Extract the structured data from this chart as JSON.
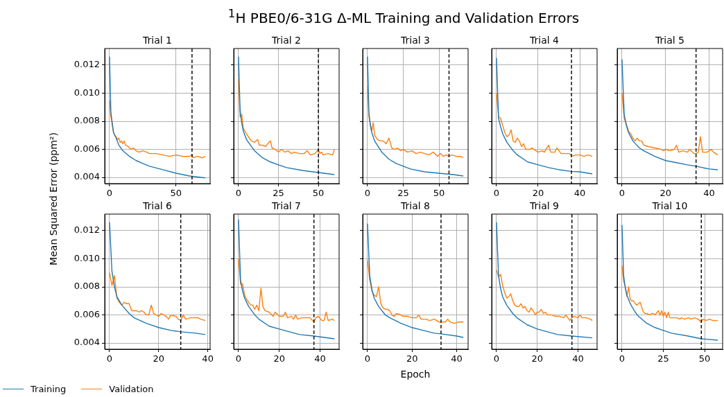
{
  "chart_data": [
    {
      "type": "other",
      "title": "$^{1}$H PBE0/6-31G Δ-ML Training and Validation Errors"
    },
    {
      "type": "line",
      "title": "Trial 1",
      "ylabel": "Mean Squared Error (ppm²)",
      "xlim": [
        -3.6,
        75.6
      ],
      "xticks": [
        0,
        50
      ],
      "ylim": [
        0.00356,
        0.01318
      ],
      "yticks": [
        {
          "value": 0.004,
          "label": "0.004"
        },
        {
          "value": 0.006,
          "label": "0.006"
        },
        {
          "value": 0.008,
          "label": "0.008"
        },
        {
          "value": 0.01,
          "label": "0.010"
        },
        {
          "value": 0.012,
          "label": "0.012"
        }
      ],
      "grid": true,
      "ref_lines": [
        {
          "axis": "x",
          "value": 62,
          "color": "#000000",
          "line_style": "dashed"
        }
      ],
      "series": [
        {
          "color": "#1f77b4",
          "x": [
            0,
            1,
            2,
            3,
            5,
            7,
            10,
            15,
            20,
            25,
            30,
            40,
            50,
            60,
            72
          ],
          "values": [
            0.0126,
            0.0087,
            0.0078,
            0.0072,
            0.0068,
            0.0063,
            0.0059,
            0.0055,
            0.0052,
            0.005,
            0.0048,
            0.00455,
            0.0043,
            0.0041,
            0.00397
          ]
        },
        {
          "color": "#ff7f0e",
          "x": [
            0,
            1,
            2,
            3,
            4,
            5,
            6,
            7,
            8,
            9,
            10,
            11,
            12,
            14,
            16,
            18,
            20,
            22,
            25,
            28,
            30,
            35,
            40,
            45,
            50,
            55,
            60,
            62,
            63,
            66,
            70,
            72
          ],
          "values": [
            0.0095,
            0.0083,
            0.008,
            0.0072,
            0.007,
            0.0069,
            0.0067,
            0.0068,
            0.0065,
            0.0066,
            0.0064,
            0.0066,
            0.0063,
            0.0062,
            0.006,
            0.0061,
            0.0059,
            0.0058,
            0.0059,
            0.0058,
            0.0057,
            0.0057,
            0.0056,
            0.0055,
            0.0056,
            0.0055,
            0.0055,
            0.0056,
            0.0054,
            0.0055,
            0.0054,
            0.0055
          ]
        }
      ]
    },
    {
      "type": "line",
      "title": "Trial 2",
      "xlim": [
        -3,
        63
      ],
      "xticks": [
        0,
        25,
        50
      ],
      "ylim": [
        0.00356,
        0.01318
      ],
      "yticks": [
        0.004,
        0.006,
        0.008,
        0.01,
        0.012
      ],
      "grid": true,
      "tick_labels": "x",
      "ref_lines": [
        {
          "axis": "x",
          "value": 50,
          "color": "#000000",
          "line_style": "dashed"
        }
      ],
      "series": [
        {
          "color": "#1f77b4",
          "x": [
            0,
            1,
            2,
            3,
            5,
            10,
            15,
            20,
            25,
            30,
            40,
            50,
            60
          ],
          "values": [
            0.0126,
            0.0088,
            0.0079,
            0.0073,
            0.0067,
            0.0059,
            0.0054,
            0.0051,
            0.0049,
            0.0047,
            0.0045,
            0.00435,
            0.0042
          ]
        },
        {
          "color": "#ff7f0e",
          "x": [
            0,
            1,
            2,
            3,
            5,
            8,
            10,
            12,
            13,
            15,
            17,
            19,
            20,
            21,
            23,
            25,
            27,
            29,
            31,
            33,
            35,
            38,
            41,
            43,
            45,
            48,
            50,
            51,
            52,
            53,
            56,
            59,
            60
          ],
          "values": [
            0.011,
            0.0083,
            0.0085,
            0.0075,
            0.0071,
            0.0066,
            0.0065,
            0.0067,
            0.0063,
            0.0063,
            0.0062,
            0.0065,
            0.0066,
            0.0061,
            0.006,
            0.0058,
            0.006,
            0.0058,
            0.0059,
            0.0057,
            0.0058,
            0.0057,
            0.0057,
            0.0059,
            0.0056,
            0.0057,
            0.006,
            0.0057,
            0.0058,
            0.0056,
            0.0057,
            0.0056,
            0.006
          ]
        }
      ]
    },
    {
      "type": "line",
      "title": "Trial 3",
      "xlim": [
        -3.35,
        70.35
      ],
      "xticks": [
        0,
        25,
        50
      ],
      "ylim": [
        0.00356,
        0.01318
      ],
      "yticks": [
        0.004,
        0.006,
        0.008,
        0.01,
        0.012
      ],
      "grid": true,
      "tick_labels": "x",
      "ref_lines": [
        {
          "axis": "x",
          "value": 57,
          "color": "#000000",
          "line_style": "dashed"
        }
      ],
      "series": [
        {
          "color": "#1f77b4",
          "x": [
            0,
            1,
            2,
            3,
            5,
            10,
            15,
            20,
            25,
            30,
            40,
            50,
            60,
            67
          ],
          "values": [
            0.0126,
            0.0086,
            0.0077,
            0.0072,
            0.0066,
            0.0058,
            0.0053,
            0.005,
            0.0048,
            0.0046,
            0.0044,
            0.0043,
            0.0042,
            0.0041
          ]
        },
        {
          "color": "#ff7f0e",
          "x": [
            0,
            1,
            2,
            3,
            4,
            5,
            7,
            9,
            11,
            13,
            15,
            17,
            19,
            21,
            23,
            25,
            28,
            31,
            34,
            37,
            40,
            43,
            46,
            49,
            51,
            53,
            55,
            57,
            59,
            62,
            65,
            67
          ],
          "values": [
            0.0105,
            0.0083,
            0.0078,
            0.0073,
            0.0079,
            0.007,
            0.0067,
            0.0066,
            0.0066,
            0.0064,
            0.0068,
            0.0061,
            0.006,
            0.0061,
            0.0059,
            0.006,
            0.0058,
            0.0059,
            0.0057,
            0.0058,
            0.0057,
            0.0056,
            0.0058,
            0.0055,
            0.0057,
            0.0055,
            0.0056,
            0.0055,
            0.0056,
            0.0055,
            0.0055,
            0.0054
          ]
        }
      ]
    },
    {
      "type": "line",
      "title": "Trial 4",
      "xlim": [
        -2.3,
        48.3
      ],
      "xticks": [
        0,
        20,
        40
      ],
      "ylim": [
        0.00356,
        0.01318
      ],
      "yticks": [
        0.004,
        0.006,
        0.008,
        0.01,
        0.012
      ],
      "grid": true,
      "tick_labels": "x",
      "ref_lines": [
        {
          "axis": "x",
          "value": 36,
          "color": "#000000",
          "line_style": "dashed"
        }
      ],
      "series": [
        {
          "color": "#1f77b4",
          "x": [
            0,
            1,
            2,
            3,
            5,
            8,
            10,
            15,
            20,
            25,
            30,
            36,
            40,
            46
          ],
          "values": [
            0.0125,
            0.0082,
            0.0076,
            0.0071,
            0.0065,
            0.0059,
            0.0056,
            0.0051,
            0.0049,
            0.0047,
            0.00455,
            0.00443,
            0.0044,
            0.00425
          ]
        },
        {
          "color": "#ff7f0e",
          "x": [
            0,
            1,
            2,
            3,
            4,
            5,
            6,
            7,
            8,
            9,
            10,
            11,
            12,
            13,
            14,
            16,
            17,
            19,
            20,
            22,
            23,
            25,
            26,
            28,
            29,
            31,
            33,
            35,
            36,
            38,
            40,
            42,
            44,
            46
          ],
          "values": [
            0.01,
            0.0083,
            0.0082,
            0.0077,
            0.0072,
            0.0069,
            0.007,
            0.0074,
            0.0066,
            0.0065,
            0.0068,
            0.0066,
            0.0062,
            0.0064,
            0.006,
            0.006,
            0.0061,
            0.0059,
            0.0058,
            0.0059,
            0.0058,
            0.0063,
            0.0058,
            0.0058,
            0.0061,
            0.0057,
            0.0057,
            0.0057,
            0.0055,
            0.0056,
            0.0056,
            0.0055,
            0.0056,
            0.0055
          ]
        }
      ]
    },
    {
      "type": "line",
      "title": "Trial 5",
      "xlim": [
        -2.2,
        46.2
      ],
      "xticks": [
        0,
        20,
        40
      ],
      "ylim": [
        0.00356,
        0.01318
      ],
      "yticks": [
        0.004,
        0.006,
        0.008,
        0.01,
        0.012
      ],
      "grid": true,
      "tick_labels": "x",
      "ref_lines": [
        {
          "axis": "x",
          "value": 34,
          "color": "#000000",
          "line_style": "dashed"
        }
      ],
      "series": [
        {
          "color": "#1f77b4",
          "x": [
            0,
            1,
            2,
            3,
            5,
            8,
            10,
            15,
            20,
            25,
            30,
            34,
            40,
            44
          ],
          "values": [
            0.0124,
            0.0085,
            0.0077,
            0.0072,
            0.0066,
            0.0061,
            0.0059,
            0.0055,
            0.0052,
            0.00505,
            0.0049,
            0.0048,
            0.0046,
            0.00455
          ]
        },
        {
          "color": "#ff7f0e",
          "x": [
            0,
            1,
            2,
            3,
            4,
            5,
            6,
            7,
            8,
            9,
            10,
            12,
            15,
            18,
            19,
            20,
            22,
            24,
            25,
            26,
            28,
            30,
            31,
            33,
            34,
            35,
            36,
            37,
            39,
            41,
            42,
            44
          ],
          "values": [
            0.01,
            0.0082,
            0.0078,
            0.0073,
            0.0071,
            0.0068,
            0.0066,
            0.0068,
            0.0066,
            0.0066,
            0.0063,
            0.0062,
            0.0061,
            0.006,
            0.0059,
            0.006,
            0.0059,
            0.006,
            0.0063,
            0.0058,
            0.0059,
            0.0058,
            0.006,
            0.0057,
            0.0057,
            0.0058,
            0.0069,
            0.0058,
            0.0058,
            0.006,
            0.0058,
            0.0056
          ]
        }
      ]
    },
    {
      "type": "line",
      "title": "Trial 6",
      "legend": "bottom left",
      "xlim": [
        -1.95,
        40.95
      ],
      "xticks": [
        0,
        20,
        40
      ],
      "ylim": [
        0.00356,
        0.01318
      ],
      "yticks": [
        {
          "value": 0.004,
          "label": "0.004"
        },
        {
          "value": 0.006,
          "label": "0.006"
        },
        {
          "value": 0.008,
          "label": "0.008"
        },
        {
          "value": 0.01,
          "label": "0.010"
        },
        {
          "value": 0.012,
          "label": "0.012"
        }
      ],
      "grid": true,
      "ref_lines": [
        {
          "axis": "x",
          "value": 29,
          "color": "#000000",
          "line_style": "dashed"
        }
      ],
      "series": [
        {
          "name": "Training",
          "color": "#1f77b4",
          "x": [
            0,
            1,
            2,
            3,
            5,
            8,
            10,
            15,
            20,
            25,
            29,
            35,
            39
          ],
          "values": [
            0.0126,
            0.0091,
            0.008,
            0.0073,
            0.0067,
            0.0061,
            0.0058,
            0.0054,
            0.0051,
            0.0049,
            0.0048,
            0.0047,
            0.0046
          ]
        },
        {
          "name": "Validation",
          "color": "#ff7f0e",
          "x": [
            0,
            1,
            2,
            3,
            4,
            5,
            6,
            7,
            8,
            9,
            11,
            12,
            13,
            14,
            15,
            16,
            17,
            18,
            20,
            21,
            23,
            24,
            25,
            27,
            28,
            29,
            30,
            31,
            33,
            34,
            36,
            37,
            39
          ],
          "values": [
            0.009,
            0.0081,
            0.0088,
            0.0072,
            0.0069,
            0.0067,
            0.0069,
            0.0068,
            0.0068,
            0.0063,
            0.0063,
            0.0062,
            0.0063,
            0.0062,
            0.006,
            0.006,
            0.0067,
            0.0061,
            0.0059,
            0.0061,
            0.0059,
            0.0057,
            0.006,
            0.0059,
            0.0057,
            0.0056,
            0.006,
            0.0057,
            0.0058,
            0.0058,
            0.0058,
            0.0057,
            0.0056
          ]
        }
      ]
    },
    {
      "type": "line",
      "title": "Trial 7",
      "xlim": [
        -2.35,
        49.35
      ],
      "xticks": [
        0,
        20,
        40
      ],
      "ylim": [
        0.00356,
        0.01318
      ],
      "yticks": [
        0.004,
        0.006,
        0.008,
        0.01,
        0.012
      ],
      "grid": true,
      "tick_labels": "x",
      "ref_lines": [
        {
          "axis": "x",
          "value": 37,
          "color": "#000000",
          "line_style": "dashed"
        }
      ],
      "series": [
        {
          "color": "#1f77b4",
          "x": [
            0,
            1,
            2,
            3,
            5,
            8,
            10,
            15,
            20,
            25,
            30,
            37,
            47
          ],
          "values": [
            0.0128,
            0.0085,
            0.0077,
            0.0072,
            0.0066,
            0.006,
            0.0057,
            0.0052,
            0.005,
            0.0048,
            0.0046,
            0.0045,
            0.0043
          ]
        },
        {
          "color": "#ff7f0e",
          "x": [
            0,
            1,
            2,
            3,
            4,
            5,
            6,
            7,
            8,
            9,
            10,
            11,
            12,
            13,
            15,
            17,
            18,
            20,
            22,
            23,
            24,
            26,
            27,
            28,
            29,
            31,
            33,
            35,
            37,
            38,
            39,
            41,
            42,
            43,
            44,
            46,
            47
          ],
          "values": [
            0.01,
            0.0082,
            0.0082,
            0.0074,
            0.0071,
            0.0069,
            0.0067,
            0.0067,
            0.0064,
            0.0067,
            0.0063,
            0.0079,
            0.0066,
            0.0063,
            0.0062,
            0.0059,
            0.0062,
            0.0059,
            0.0059,
            0.0062,
            0.0058,
            0.0059,
            0.0057,
            0.006,
            0.0057,
            0.0058,
            0.0058,
            0.0058,
            0.0055,
            0.0058,
            0.0059,
            0.0056,
            0.0056,
            0.0062,
            0.0056,
            0.0057,
            0.0056
          ]
        }
      ]
    },
    {
      "type": "line",
      "title": "Trial 8",
      "xlabel": "Epoch",
      "xlim": [
        -2.15,
        45.15
      ],
      "xticks": [
        0,
        20,
        40
      ],
      "ylim": [
        0.00356,
        0.01318
      ],
      "yticks": [
        0.004,
        0.006,
        0.008,
        0.01,
        0.012
      ],
      "grid": true,
      "tick_labels": "x",
      "ref_lines": [
        {
          "axis": "x",
          "value": 33,
          "color": "#000000",
          "line_style": "dashed"
        }
      ],
      "series": [
        {
          "color": "#1f77b4",
          "x": [
            0,
            1,
            2,
            3,
            5,
            8,
            10,
            15,
            20,
            25,
            30,
            33,
            40,
            43
          ],
          "values": [
            0.0125,
            0.0088,
            0.0078,
            0.0072,
            0.0066,
            0.006,
            0.0058,
            0.0054,
            0.0051,
            0.0049,
            0.0047,
            0.00465,
            0.0045,
            0.0044
          ]
        },
        {
          "color": "#ff7f0e",
          "x": [
            0,
            1,
            2,
            3,
            4,
            5,
            6,
            7,
            8,
            9,
            10,
            11,
            12,
            13,
            15,
            16,
            18,
            20,
            22,
            23,
            24,
            26,
            28,
            30,
            31,
            32,
            33,
            35,
            36,
            37,
            39,
            41,
            43
          ],
          "values": [
            0.0099,
            0.0085,
            0.0077,
            0.0074,
            0.0073,
            0.008,
            0.0068,
            0.0065,
            0.0064,
            0.0064,
            0.0063,
            0.006,
            0.0059,
            0.0061,
            0.006,
            0.0059,
            0.0059,
            0.0058,
            0.0058,
            0.006,
            0.0057,
            0.0057,
            0.0056,
            0.0057,
            0.0056,
            0.0055,
            0.0055,
            0.0055,
            0.0057,
            0.0055,
            0.0054,
            0.0055,
            0.0055
          ]
        }
      ]
    },
    {
      "type": "line",
      "title": "Trial 9",
      "xlim": [
        -2.35,
        49.35
      ],
      "xticks": [
        0,
        20,
        40
      ],
      "ylim": [
        0.00356,
        0.01318
      ],
      "yticks": [
        0.004,
        0.006,
        0.008,
        0.01,
        0.012
      ],
      "grid": true,
      "tick_labels": "x",
      "ref_lines": [
        {
          "axis": "x",
          "value": 37,
          "color": "#000000",
          "line_style": "dashed"
        }
      ],
      "series": [
        {
          "color": "#1f77b4",
          "x": [
            0,
            1,
            2,
            3,
            5,
            8,
            10,
            15,
            20,
            25,
            30,
            37,
            47
          ],
          "values": [
            0.0126,
            0.0088,
            0.0079,
            0.0073,
            0.0067,
            0.0061,
            0.0058,
            0.0053,
            0.005,
            0.0048,
            0.0046,
            0.0045,
            0.00437
          ]
        },
        {
          "color": "#ff7f0e",
          "x": [
            0,
            1,
            2,
            3,
            4,
            5,
            6,
            7,
            8,
            9,
            10,
            11,
            12,
            13,
            14,
            15,
            16,
            17,
            18,
            19,
            20,
            21,
            22,
            23,
            24,
            25,
            27,
            29,
            31,
            33,
            34,
            35,
            36,
            37,
            38,
            40,
            41,
            42,
            44,
            46,
            47
          ],
          "values": [
            0.0092,
            0.0087,
            0.0089,
            0.0081,
            0.0076,
            0.0072,
            0.0073,
            0.0075,
            0.007,
            0.0067,
            0.0066,
            0.0066,
            0.0068,
            0.0065,
            0.0066,
            0.0063,
            0.0062,
            0.0065,
            0.0063,
            0.006,
            0.0062,
            0.0062,
            0.0064,
            0.0061,
            0.0062,
            0.006,
            0.006,
            0.0059,
            0.0059,
            0.0058,
            0.006,
            0.0058,
            0.0056,
            0.0058,
            0.0059,
            0.0058,
            0.006,
            0.0058,
            0.0058,
            0.0057,
            0.0056
          ]
        }
      ]
    },
    {
      "type": "line",
      "title": "Trial 10",
      "xlim": [
        -2.9,
        60.9
      ],
      "xticks": [
        0,
        25,
        50
      ],
      "ylim": [
        0.00356,
        0.01318
      ],
      "yticks": [
        0.004,
        0.006,
        0.008,
        0.01,
        0.012
      ],
      "grid": true,
      "tick_labels": "x",
      "ref_lines": [
        {
          "axis": "x",
          "value": 48,
          "color": "#000000",
          "line_style": "dashed"
        }
      ],
      "series": [
        {
          "color": "#1f77b4",
          "x": [
            0,
            1,
            2,
            3,
            5,
            8,
            10,
            15,
            20,
            25,
            30,
            40,
            48,
            58
          ],
          "values": [
            0.0124,
            0.0088,
            0.0079,
            0.0074,
            0.0068,
            0.0062,
            0.0059,
            0.0054,
            0.0051,
            0.0049,
            0.0047,
            0.0045,
            0.0043,
            0.0042
          ]
        },
        {
          "color": "#ff7f0e",
          "x": [
            0,
            1,
            2,
            3,
            4,
            5,
            6,
            7,
            8,
            9,
            10,
            11,
            12,
            13,
            14,
            15,
            17,
            18,
            19,
            20,
            22,
            23,
            24,
            25,
            26,
            27,
            28,
            29,
            31,
            33,
            35,
            36,
            38,
            40,
            42,
            44,
            46,
            47,
            48,
            49,
            51,
            53,
            55,
            58
          ],
          "values": [
            0.0095,
            0.0084,
            0.008,
            0.0073,
            0.008,
            0.0071,
            0.007,
            0.007,
            0.0068,
            0.0067,
            0.0068,
            0.0069,
            0.0065,
            0.0062,
            0.0061,
            0.0061,
            0.006,
            0.0061,
            0.0061,
            0.006,
            0.0063,
            0.006,
            0.0063,
            0.0059,
            0.0062,
            0.0058,
            0.0062,
            0.0058,
            0.0058,
            0.0058,
            0.0057,
            0.0058,
            0.0057,
            0.0058,
            0.0057,
            0.0058,
            0.0057,
            0.0056,
            0.0055,
            0.0057,
            0.0056,
            0.0057,
            0.0056,
            0.0056
          ]
        }
      ]
    }
  ]
}
